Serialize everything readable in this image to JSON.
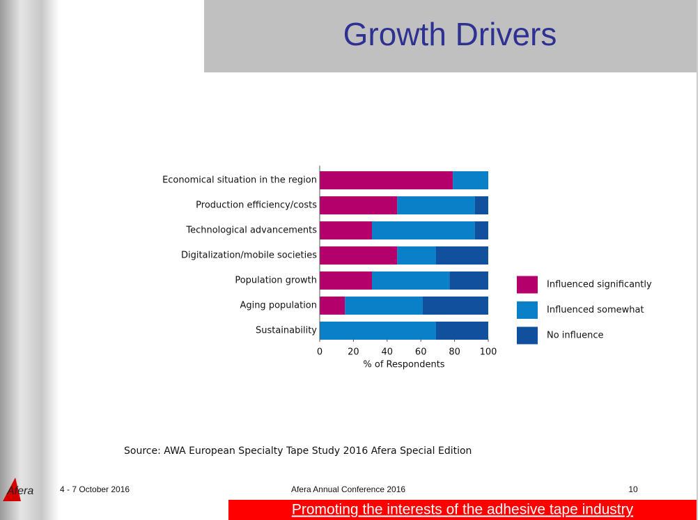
{
  "chart_data": {
    "type": "stacked-barh",
    "title": "Growth Drivers",
    "categories": [
      "Economical situation in the region",
      "Production efficiency/costs",
      "Technological advancements",
      "Digitalization/mobile societies",
      "Population growth",
      "Aging population",
      "Sustainability"
    ],
    "series": [
      {
        "name": "Influenced significantly",
        "color": "#b4006b",
        "values": [
          79,
          46,
          31,
          46,
          31,
          15,
          0
        ]
      },
      {
        "name": "Influenced somewhat",
        "color": "#0a80c8",
        "values": [
          21,
          46,
          61,
          23,
          46,
          46,
          69
        ]
      },
      {
        "name": "No influence",
        "color": "#10509c",
        "values": [
          0,
          8,
          8,
          31,
          23,
          39,
          31
        ]
      }
    ],
    "xlabel": "% of Respondents",
    "xlim": [
      0,
      100
    ],
    "xticks": [
      0,
      20,
      40,
      60,
      80,
      100
    ],
    "legend": "right"
  },
  "slide": {
    "source": "Source: AWA European Specialty Tape Study 2016 Afera Special Edition",
    "logo": "Afera",
    "date": "4 - 7 October 2016",
    "conference": "Afera Annual Conference 2016",
    "page": "10",
    "banner": "Promoting the interests of the adhesive tape industry"
  }
}
